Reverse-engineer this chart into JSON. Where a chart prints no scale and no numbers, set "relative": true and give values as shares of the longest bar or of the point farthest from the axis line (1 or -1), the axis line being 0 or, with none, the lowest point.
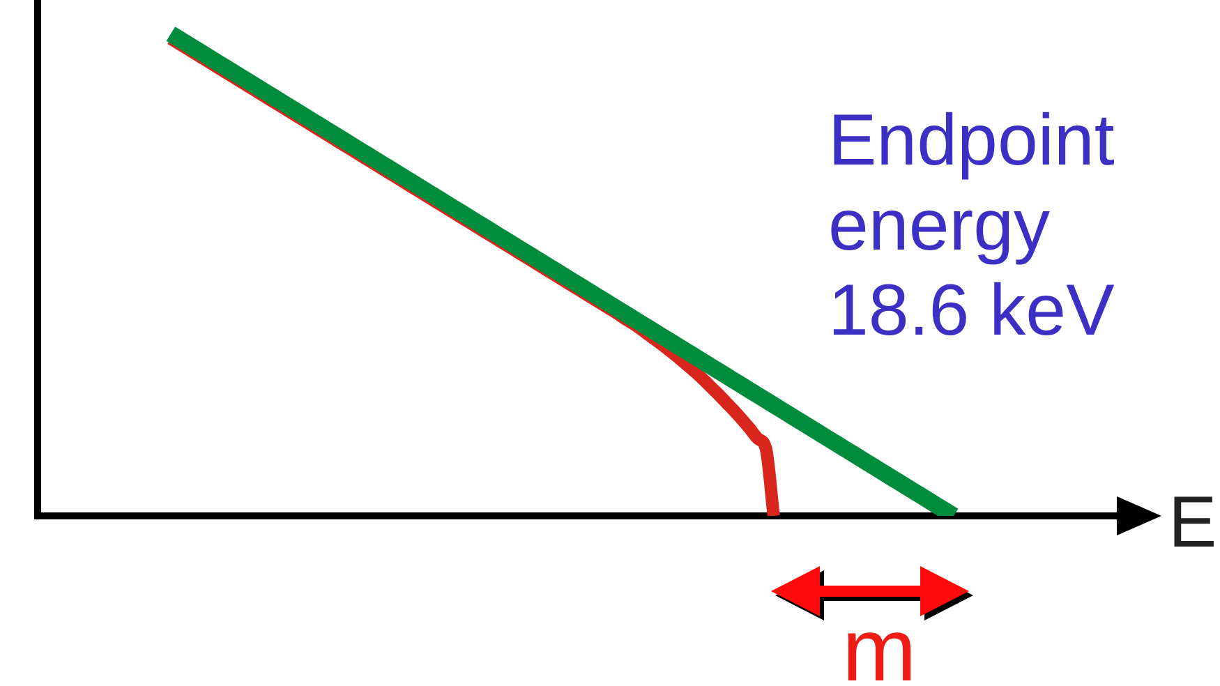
{
  "chart_data": {
    "type": "line",
    "xlabel": "E",
    "annotations": [
      "Endpoint energy 18.6 keV",
      "m"
    ],
    "relative": true,
    "categories": [
      null,
      null,
      null,
      null,
      null,
      null,
      null,
      null,
      null,
      null,
      null,
      null,
      null,
      null,
      null,
      null,
      null,
      null,
      null,
      null,
      null,
      null,
      null,
      null,
      null,
      null,
      null,
      null,
      null,
      null,
      null,
      null,
      null,
      null,
      null,
      null,
      null,
      null,
      null,
      null,
      null,
      null,
      null,
      null,
      null,
      null,
      null,
      null,
      null,
      null,
      null,
      null,
      null,
      null,
      null,
      null,
      null,
      null,
      null,
      null,
      null,
      null,
      null,
      null,
      null,
      null,
      null,
      null,
      null,
      null,
      null,
      null,
      null,
      null,
      null,
      null,
      null,
      null,
      null,
      null,
      null,
      null,
      null,
      null,
      null,
      null,
      null,
      null,
      null,
      null,
      null,
      null,
      null,
      null,
      null,
      null,
      null,
      null,
      null,
      null,
      null,
      null,
      null,
      null,
      null,
      null,
      null,
      null,
      null,
      null,
      null,
      null,
      null,
      null,
      null,
      null,
      null,
      null,
      null,
      null,
      null,
      null,
      null,
      null,
      null,
      null,
      null,
      null,
      null,
      null,
      null,
      null,
      null,
      null,
      null,
      null,
      null,
      null,
      null
    ],
    "series": [
      {
        "color": "#008c3c",
        "values": [
          null,
          null,
          null,
          null,
          null,
          null,
          null,
          null,
          null,
          null,
          null,
          null,
          null,
          null,
          null,
          null,
          null,
          1,
          0.99,
          0.98,
          0.97,
          0.96,
          0.95,
          0.94,
          0.93,
          0.92,
          0.91,
          0.9,
          0.89,
          0.88,
          0.87,
          0.86,
          0.85,
          0.84,
          0.83,
          0.82,
          0.81,
          0.8,
          0.79,
          0.78,
          0.77,
          0.76,
          0.75,
          0.74,
          0.73,
          0.72,
          0.71,
          0.7,
          0.69,
          0.68,
          0.67,
          0.66,
          0.65,
          0.64,
          0.63,
          0.62,
          0.61,
          0.6,
          0.59,
          0.58,
          0.57,
          0.56,
          0.55,
          0.54,
          0.53,
          0.52,
          0.51,
          0.5,
          0.49,
          0.48,
          0.47,
          0.46,
          0.45,
          0.44,
          0.43,
          0.42,
          0.41,
          0.4,
          0.39,
          0.38,
          0.37,
          0.36,
          0.35,
          0.34,
          0.33,
          0.32,
          0.31,
          0.3,
          0.29,
          0.28,
          0.27,
          0.26,
          0.25,
          0.24,
          0.23,
          0.22,
          0.21,
          0.2,
          0.19,
          0.18,
          0.17,
          0.16,
          0.15,
          0.14,
          0.13,
          0.12,
          0.11,
          0.1,
          0.09,
          0.08,
          0.07,
          0.06,
          0.05,
          0.04,
          0.03,
          0.02,
          0.01,
          0,
          null,
          null,
          null,
          null,
          null,
          null,
          null,
          null,
          null,
          null,
          null,
          null,
          null,
          null,
          null,
          null,
          null,
          null,
          null,
          null,
          null
        ]
      },
      {
        "color": "#d9261c",
        "values": [
          null,
          null,
          null,
          null,
          null,
          null,
          null,
          null,
          null,
          null,
          null,
          null,
          null,
          null,
          null,
          null,
          null,
          0.99,
          0.98,
          0.97,
          0.96,
          0.95,
          0.94,
          0.93,
          0.92,
          0.91,
          0.9,
          0.89,
          0.88,
          0.87,
          0.86,
          0.85,
          0.84,
          0.83,
          0.82,
          0.81,
          0.8,
          0.79,
          0.78,
          0.77,
          0.76,
          0.75,
          0.74,
          0.73,
          0.72,
          0.71,
          0.7,
          0.69,
          0.68,
          0.67,
          0.66,
          0.65,
          0.64,
          0.63,
          0.62,
          0.61,
          0.6,
          0.59,
          0.58,
          0.57,
          0.56,
          0.55,
          0.54,
          0.53,
          0.52,
          0.51,
          0.5,
          0.49,
          0.48,
          0.47,
          0.46,
          0.45,
          0.44,
          0.43,
          0.42,
          0.409,
          0.399,
          0.388,
          0.376,
          0.364,
          0.352,
          0.339,
          0.326,
          0.312,
          0.298,
          0.283,
          0.267,
          0.251,
          0.234,
          0.217,
          0.199,
          0.18,
          0.16,
          0.14,
          0,
          null,
          null,
          null,
          null,
          null,
          null,
          null,
          null,
          null,
          null,
          null,
          null,
          null,
          null,
          null,
          null,
          null,
          null,
          null,
          null,
          null,
          null,
          null,
          null,
          null,
          null,
          null,
          null,
          null,
          null,
          null,
          null,
          null,
          null,
          null,
          null,
          null,
          null,
          null,
          null,
          null,
          null,
          null,
          null
        ]
      }
    ]
  }
}
